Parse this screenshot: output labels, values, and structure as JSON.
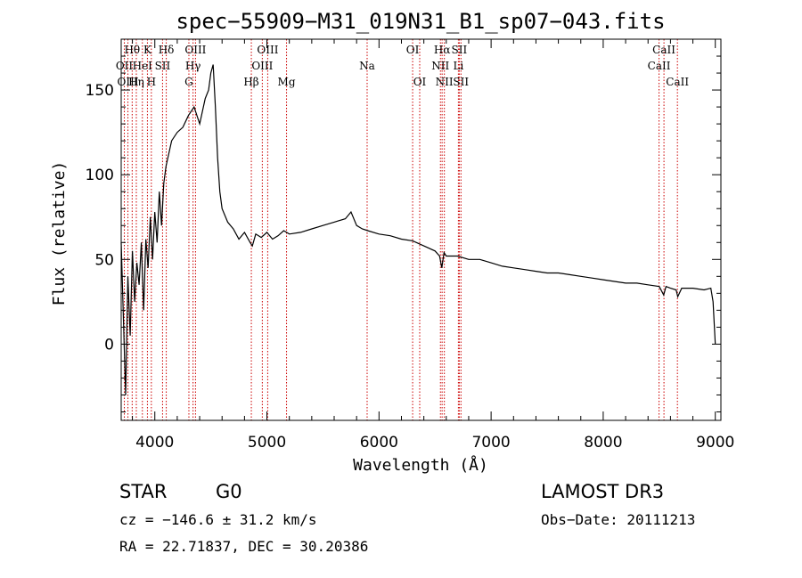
{
  "chart_data": {
    "type": "line",
    "title": "spec−55909−M31_019N31_B1_sp07−043.fits",
    "xlabel": "Wavelength (Å)",
    "ylabel": "Flux (relative)",
    "xlim": [
      3700,
      9050
    ],
    "ylim": [
      -45,
      180
    ],
    "x_ticks": [
      4000,
      5000,
      6000,
      7000,
      8000,
      9000
    ],
    "y_ticks": [
      0,
      50,
      100,
      150
    ],
    "spectrum": {
      "name": "flux",
      "x": [
        3700,
        3720,
        3740,
        3760,
        3780,
        3800,
        3820,
        3840,
        3860,
        3880,
        3900,
        3920,
        3940,
        3960,
        3980,
        4000,
        4020,
        4040,
        4060,
        4080,
        4100,
        4150,
        4200,
        4250,
        4300,
        4350,
        4400,
        4450,
        4480,
        4500,
        4520,
        4540,
        4560,
        4580,
        4600,
        4650,
        4700,
        4750,
        4800,
        4850,
        4870,
        4900,
        4950,
        5000,
        5050,
        5100,
        5150,
        5200,
        5300,
        5400,
        5500,
        5600,
        5700,
        5750,
        5800,
        5850,
        5900,
        6000,
        6100,
        6200,
        6300,
        6400,
        6500,
        6540,
        6560,
        6580,
        6600,
        6700,
        6800,
        6900,
        7000,
        7100,
        7200,
        7300,
        7400,
        7500,
        7600,
        7700,
        7800,
        7900,
        8000,
        8100,
        8200,
        8300,
        8400,
        8500,
        8540,
        8560,
        8600,
        8650,
        8665,
        8700,
        8800,
        8900,
        8960,
        8980,
        9000
      ],
      "y": [
        60,
        15,
        -30,
        40,
        5,
        55,
        25,
        48,
        35,
        60,
        20,
        62,
        45,
        75,
        50,
        78,
        60,
        90,
        70,
        95,
        105,
        120,
        125,
        128,
        135,
        140,
        130,
        145,
        150,
        160,
        165,
        140,
        110,
        90,
        80,
        72,
        68,
        62,
        66,
        60,
        58,
        65,
        63,
        66,
        62,
        64,
        67,
        65,
        66,
        68,
        70,
        72,
        74,
        78,
        70,
        68,
        67,
        65,
        64,
        62,
        61,
        58,
        55,
        52,
        45,
        54,
        52,
        52,
        50,
        50,
        48,
        46,
        45,
        44,
        43,
        42,
        42,
        41,
        40,
        39,
        38,
        37,
        36,
        36,
        35,
        34,
        29,
        34,
        33,
        32,
        28,
        33,
        33,
        32,
        33,
        25,
        0
      ]
    },
    "line_markers": [
      {
        "label": "Hθ",
        "x": 3798,
        "row": 0
      },
      {
        "label": "OII",
        "x": 3728,
        "row": 1
      },
      {
        "label": "OIII",
        "x": 3760,
        "row": 2
      },
      {
        "label": "Hη",
        "x": 3835,
        "row": 2
      },
      {
        "label": "HeI",
        "x": 3889,
        "row": 1
      },
      {
        "label": "K",
        "x": 3934,
        "row": 0
      },
      {
        "label": "H",
        "x": 3969,
        "row": 2
      },
      {
        "label": "SII",
        "x": 4069,
        "row": 1
      },
      {
        "label": "Hδ",
        "x": 4102,
        "row": 0
      },
      {
        "label": "G",
        "x": 4304,
        "row": 2
      },
      {
        "label": "Hγ",
        "x": 4341,
        "row": 1
      },
      {
        "label": "OIII",
        "x": 4363,
        "row": 0
      },
      {
        "label": "Hβ",
        "x": 4861,
        "row": 2
      },
      {
        "label": "OIII",
        "x": 4959,
        "row": 1
      },
      {
        "label": "OIII",
        "x": 5007,
        "row": 0
      },
      {
        "label": "Mg",
        "x": 5175,
        "row": 2
      },
      {
        "label": "Na",
        "x": 5894,
        "row": 1
      },
      {
        "label": "OI",
        "x": 6300,
        "row": 0
      },
      {
        "label": "OI",
        "x": 6363,
        "row": 2
      },
      {
        "label": "NII",
        "x": 6548,
        "row": 1
      },
      {
        "label": "Hα",
        "x": 6563,
        "row": 0
      },
      {
        "label": "NII",
        "x": 6583,
        "row": 2
      },
      {
        "label": "Li",
        "x": 6708,
        "row": 1
      },
      {
        "label": "SII",
        "x": 6716,
        "row": 0
      },
      {
        "label": "SII",
        "x": 6731,
        "row": 2
      },
      {
        "label": "CaII",
        "x": 8498,
        "row": 1
      },
      {
        "label": "CaII",
        "x": 8542,
        "row": 0
      },
      {
        "label": "CaII",
        "x": 8662,
        "row": 2
      }
    ],
    "marker_color": "#cc0000"
  },
  "info": {
    "class": "STAR",
    "subclass": "G0",
    "survey": "LAMOST DR3",
    "cz": "cz = −146.6 ± 31.2 km/s",
    "obs_date": "Obs−Date: 20111213",
    "radec": "RA =  22.71837, DEC =  30.20386"
  }
}
